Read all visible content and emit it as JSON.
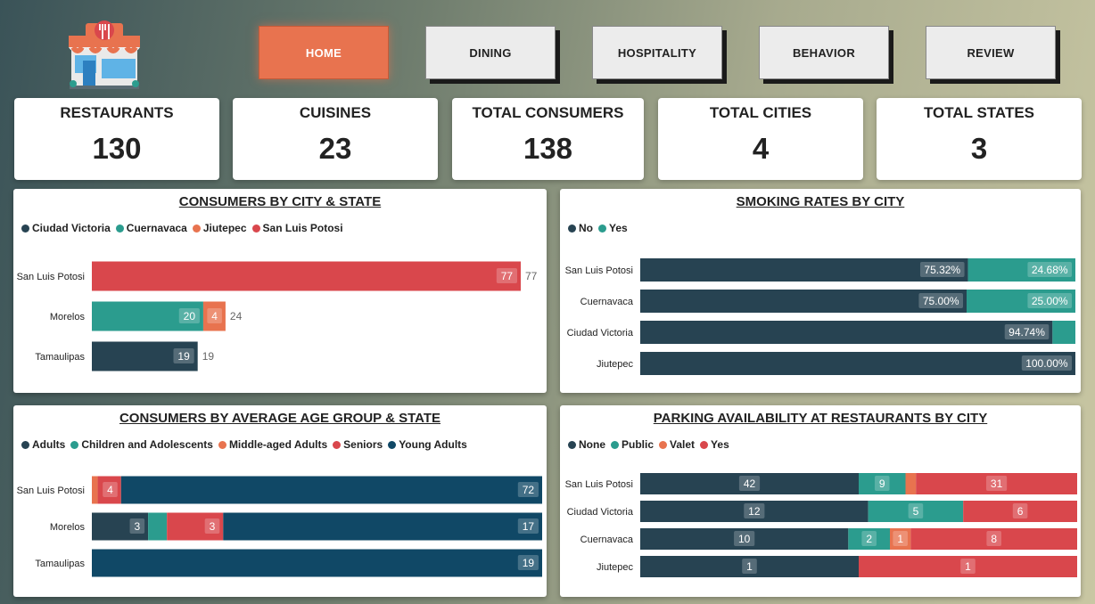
{
  "nav": {
    "items": [
      {
        "label": "HOME",
        "active": true
      },
      {
        "label": "DINING",
        "active": false
      },
      {
        "label": "HOSPITALITY",
        "active": false
      },
      {
        "label": "BEHAVIOR",
        "active": false
      },
      {
        "label": "REVIEW",
        "active": false
      }
    ]
  },
  "kpis": [
    {
      "label": "RESTAURANTS",
      "value": "130"
    },
    {
      "label": "CUISINES",
      "value": "23"
    },
    {
      "label": "TOTAL CONSUMERS",
      "value": "138"
    },
    {
      "label": "TOTAL CITIES",
      "value": "4"
    },
    {
      "label": "TOTAL STATES",
      "value": "3"
    }
  ],
  "colors": {
    "dark": "#274352",
    "teal": "#2b9c8e",
    "orange": "#e8734f",
    "red": "#d9474c",
    "navy": "#104866"
  },
  "chart_data": [
    {
      "id": "city_state",
      "type": "bar",
      "title": "CONSUMERS BY CITY & STATE",
      "orientation": "horizontal",
      "stacked": true,
      "categories": [
        "San Luis Potosi",
        "Morelos",
        "Tamaulipas"
      ],
      "series": [
        {
          "name": "Ciudad Victoria",
          "color": "#274352",
          "values": [
            0,
            0,
            19
          ]
        },
        {
          "name": "Cuernavaca",
          "color": "#2b9c8e",
          "values": [
            0,
            20,
            0
          ]
        },
        {
          "name": "Jiutepec",
          "color": "#e8734f",
          "values": [
            0,
            4,
            0
          ]
        },
        {
          "name": "San Luis Potosi",
          "color": "#d9474c",
          "values": [
            77,
            0,
            0
          ]
        }
      ],
      "totals": [
        77,
        24,
        19
      ],
      "xlim": [
        0,
        80
      ]
    },
    {
      "id": "smoking",
      "type": "bar",
      "title": "SMOKING RATES BY CITY",
      "orientation": "horizontal",
      "stacked": true,
      "percent": true,
      "categories": [
        "San Luis Potosi",
        "Cuernavaca",
        "Ciudad Victoria",
        "Jiutepec"
      ],
      "series": [
        {
          "name": "No",
          "color": "#274352",
          "values": [
            75.32,
            75.0,
            94.74,
            100.0
          ]
        },
        {
          "name": "Yes",
          "color": "#2b9c8e",
          "values": [
            24.68,
            25.0,
            5.26,
            0
          ]
        }
      ],
      "labels": [
        [
          "75.32%",
          "24.68%"
        ],
        [
          "75.00%",
          "25.00%"
        ],
        [
          "94.74%",
          ""
        ],
        [
          "100.00%",
          ""
        ]
      ]
    },
    {
      "id": "age_group",
      "type": "bar",
      "title": "CONSUMERS BY AVERAGE AGE GROUP & STATE",
      "orientation": "horizontal",
      "stacked": true,
      "percent": true,
      "categories": [
        "San Luis Potosi",
        "Morelos",
        "Tamaulipas"
      ],
      "series": [
        {
          "name": "Adults",
          "color": "#274352",
          "values": [
            0,
            3,
            0
          ]
        },
        {
          "name": "Children and Adolescents",
          "color": "#2b9c8e",
          "values": [
            0,
            1,
            0
          ]
        },
        {
          "name": "Middle-aged Adults",
          "color": "#e8734f",
          "values": [
            1,
            0,
            0
          ]
        },
        {
          "name": "Seniors",
          "color": "#d9474c",
          "values": [
            4,
            3,
            0
          ]
        },
        {
          "name": "Young Adults",
          "color": "#104866",
          "values": [
            72,
            17,
            19
          ]
        }
      ],
      "labels": [
        [
          "",
          "",
          "",
          "4",
          "72"
        ],
        [
          "3",
          "",
          "",
          "3",
          "17"
        ],
        [
          "",
          "",
          "",
          "",
          "19"
        ]
      ]
    },
    {
      "id": "parking",
      "type": "bar",
      "title": "PARKING AVAILABILITY AT RESTAURANTS BY CITY",
      "orientation": "horizontal",
      "stacked": true,
      "percent": true,
      "categories": [
        "San Luis Potosi",
        "Ciudad Victoria",
        "Cuernavaca",
        "Jiutepec"
      ],
      "series": [
        {
          "name": "None",
          "color": "#274352",
          "values": [
            42,
            12,
            10,
            1
          ]
        },
        {
          "name": "Public",
          "color": "#2b9c8e",
          "values": [
            9,
            5,
            2,
            0
          ]
        },
        {
          "name": "Valet",
          "color": "#e8734f",
          "values": [
            2,
            0,
            1,
            0
          ]
        },
        {
          "name": "Yes",
          "color": "#d9474c",
          "values": [
            31,
            6,
            8,
            1
          ]
        }
      ],
      "labels": [
        [
          "42",
          "9",
          "",
          "31"
        ],
        [
          "12",
          "5",
          "",
          "6"
        ],
        [
          "10",
          "2",
          "1",
          "8"
        ],
        [
          "1",
          "",
          "",
          "1"
        ]
      ]
    }
  ]
}
